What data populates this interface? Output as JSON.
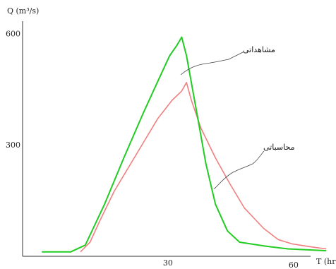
{
  "chart_data": {
    "type": "line",
    "ylabel": "Q (m³/s)",
    "xlabel": "T (hr)",
    "xlim": [
      0,
      65
    ],
    "ylim": [
      0,
      690
    ],
    "grid": false,
    "x_ticks": [
      {
        "value": 30,
        "label": "30"
      },
      {
        "value": 60,
        "label": "60"
      }
    ],
    "y_ticks": [
      {
        "value": 300,
        "label": "300"
      },
      {
        "value": 600,
        "label": "600"
      }
    ],
    "series": [
      {
        "name": "مشاهداتی",
        "color": "#22cc22",
        "points": [
          [
            4,
            12
          ],
          [
            10,
            12
          ],
          [
            13,
            30
          ],
          [
            17,
            140
          ],
          [
            21,
            265
          ],
          [
            25,
            385
          ],
          [
            28,
            470
          ],
          [
            30.5,
            540
          ],
          [
            32,
            568
          ],
          [
            33,
            590
          ],
          [
            34,
            540
          ],
          [
            36.5,
            360
          ],
          [
            38,
            250
          ],
          [
            40,
            140
          ],
          [
            42.5,
            68
          ],
          [
            45,
            38
          ],
          [
            50,
            28
          ],
          [
            55,
            20
          ],
          [
            60,
            17
          ],
          [
            63,
            15
          ]
        ]
      },
      {
        "name": "محاسباتی",
        "color": "#f08080",
        "points": [
          [
            12,
            12
          ],
          [
            14,
            38
          ],
          [
            16,
            95
          ],
          [
            19,
            175
          ],
          [
            22,
            240
          ],
          [
            25,
            305
          ],
          [
            28,
            370
          ],
          [
            31,
            420
          ],
          [
            33,
            445
          ],
          [
            34,
            468
          ],
          [
            35,
            420
          ],
          [
            37,
            345
          ],
          [
            40,
            265
          ],
          [
            43,
            195
          ],
          [
            46,
            130
          ],
          [
            50,
            75
          ],
          [
            53,
            45
          ],
          [
            56,
            33
          ],
          [
            60,
            25
          ],
          [
            63,
            20
          ]
        ]
      }
    ],
    "annotations": [
      {
        "text": "مشاهداتی",
        "series": 0
      },
      {
        "text": "محاسباتی",
        "series": 1
      }
    ]
  }
}
